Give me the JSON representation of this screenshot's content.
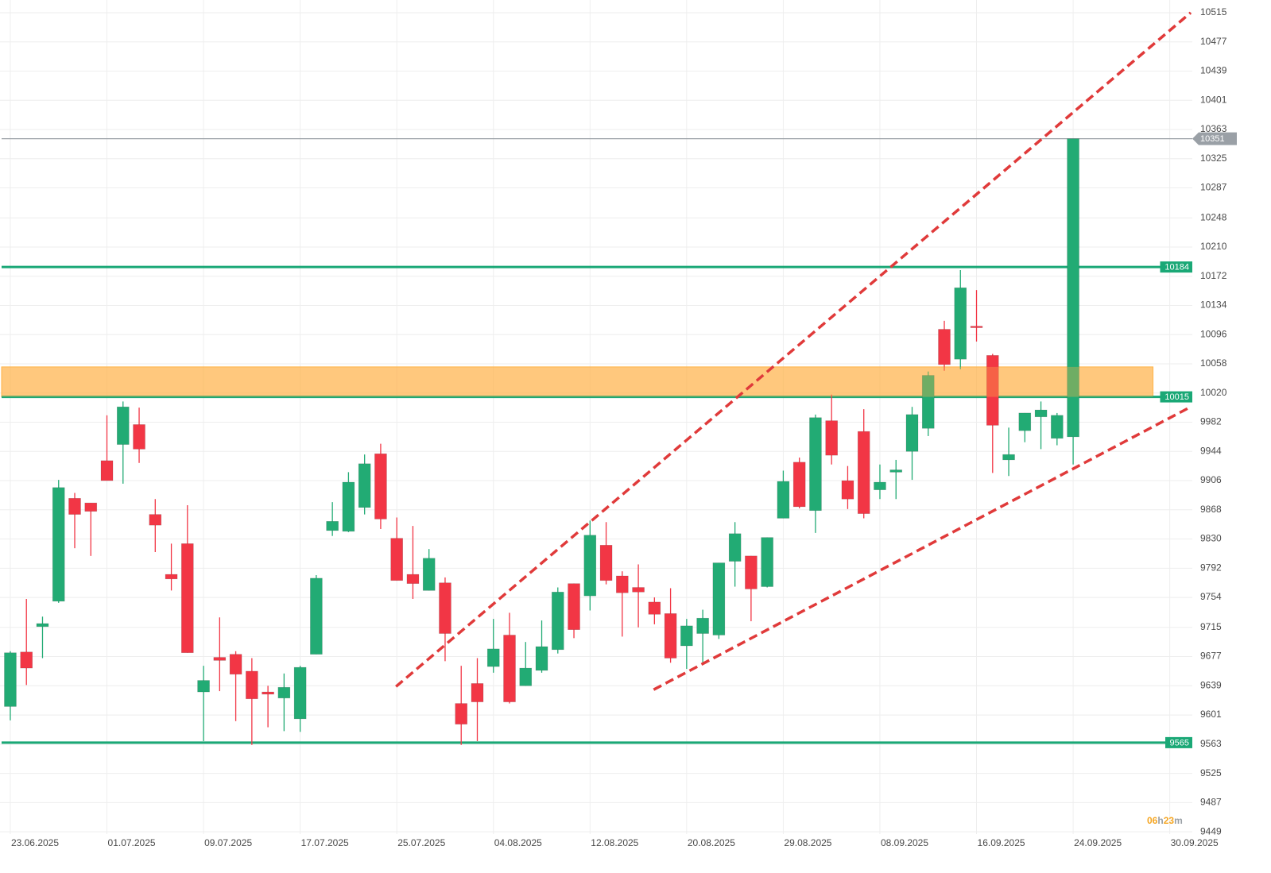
{
  "chart_data": {
    "type": "candlestick",
    "up_color": "#22ab74",
    "down_color": "#f23645",
    "open": [
      9612,
      9683,
      9716,
      9749,
      9883,
      9877,
      9932,
      9953,
      9979,
      9862,
      9784,
      9824,
      9631,
      9676,
      9680,
      9658,
      9631,
      9623,
      9596,
      9680,
      9841,
      9840,
      9871,
      9941,
      9831,
      9784,
      9763,
      9773,
      9616,
      9642,
      9664,
      9705,
      9639,
      9659,
      9686,
      9772,
      9756,
      9822,
      9782,
      9767,
      9748,
      9733,
      9691,
      9707,
      9705,
      9801,
      9808,
      9768,
      9857,
      9930,
      9867,
      9984,
      9906,
      9970,
      9894,
      9917,
      9944,
      9974,
      10103,
      10064,
      10107,
      10069,
      9933,
      9971,
      9989,
      9961,
      9963
    ],
    "high": [
      9684,
      9752,
      9729,
      9907,
      9890,
      9877,
      9991,
      10009,
      10001,
      9882,
      9824,
      9874,
      9665,
      9728,
      9684,
      9675,
      9639,
      9655,
      9665,
      9783,
      9878,
      9917,
      9940,
      9954,
      9858,
      9847,
      9817,
      9780,
      9665,
      9675,
      9726,
      9734,
      9696,
      9724,
      9767,
      9772,
      9854,
      9852,
      9788,
      9797,
      9754,
      9766,
      9726,
      9738,
      9799,
      9852,
      9808,
      9832,
      9919,
      9936,
      9992,
      10018,
      9925,
      9999,
      9927,
      9933,
      10002,
      10048,
      10114,
      10180,
      10154,
      10071,
      9975,
      9994,
      10009,
      9994,
      10351
    ],
    "low": [
      9594,
      9640,
      9675,
      9747,
      9818,
      9808,
      9906,
      9902,
      9929,
      9813,
      9763,
      9682,
      9567,
      9632,
      9593,
      9562,
      9585,
      9580,
      9579,
      9680,
      9834,
      9839,
      9862,
      9843,
      9776,
      9752,
      9763,
      9671,
      9562,
      9567,
      9656,
      9616,
      9639,
      9656,
      9681,
      9701,
      9737,
      9771,
      9703,
      9715,
      9719,
      9669,
      9661,
      9669,
      9700,
      9768,
      9723,
      9767,
      9857,
      9870,
      9838,
      9927,
      9869,
      9857,
      9882,
      9882,
      9907,
      9964,
      10049,
      10051,
      10087,
      9916,
      9912,
      9956,
      9947,
      9952,
      9927
    ],
    "close": [
      9682,
      9662,
      9720,
      9897,
      9862,
      9866,
      9906,
      10002,
      9947,
      9848,
      9778,
      9682,
      9646,
      9672,
      9654,
      9622,
      9628,
      9637,
      9663,
      9779,
      9853,
      9904,
      9928,
      9856,
      9776,
      9772,
      9805,
      9707,
      9589,
      9618,
      9687,
      9618,
      9662,
      9690,
      9761,
      9712,
      9835,
      9776,
      9760,
      9761,
      9732,
      9675,
      9717,
      9727,
      9799,
      9837,
      9765,
      9832,
      9905,
      9872,
      9988,
      9939,
      9882,
      9863,
      9904,
      9920,
      9992,
      10043,
      10057,
      10157,
      10105,
      9978,
      9940,
      9994,
      9998,
      9991,
      10351
    ],
    "xlim": [
      -0.64,
      73.4
    ],
    "xticks": [
      {
        "value": 0,
        "label": "23.06.2025"
      },
      {
        "value": 6,
        "label": "01.07.2025"
      },
      {
        "value": 12,
        "label": "09.07.2025"
      },
      {
        "value": 18,
        "label": "17.07.2025"
      },
      {
        "value": 24,
        "label": "25.07.2025"
      },
      {
        "value": 30,
        "label": "04.08.2025"
      },
      {
        "value": 36,
        "label": "12.08.2025"
      },
      {
        "value": 42,
        "label": "20.08.2025"
      },
      {
        "value": 48,
        "label": "29.08.2025"
      },
      {
        "value": 54,
        "label": "08.09.2025"
      },
      {
        "value": 60,
        "label": "16.09.2025"
      },
      {
        "value": 66,
        "label": "24.09.2025"
      },
      {
        "value": 72,
        "label": "30.09.2025"
      }
    ],
    "ylim": [
      9446,
      10531.5
    ],
    "yticks": [
      10515,
      10477,
      10439,
      10401,
      10363,
      10325,
      10287,
      10248,
      10210,
      10172,
      10134,
      10096,
      10058,
      10020,
      9982,
      9944,
      9906,
      9868,
      9830,
      9792,
      9754,
      9715,
      9677,
      9639,
      9601,
      9563,
      9525,
      9487,
      9449
    ],
    "grid": true,
    "levels": [
      {
        "value": 10184,
        "color": "#1aa876"
      },
      {
        "value": 10015,
        "color": "#1aa876"
      },
      {
        "value": 9565,
        "color": "#1aa876"
      }
    ],
    "current_price": {
      "value": 10351,
      "color": "#9aa0a6"
    },
    "zone": {
      "from": 10015,
      "to": 10054,
      "x_end": 70.96,
      "color": "#ffb347"
    },
    "trendlines": [
      {
        "x": [
          23.95,
          73.3
        ],
        "y": [
          9638,
          10515
        ],
        "color": "#e03a3a"
      },
      {
        "x": [
          39.95,
          73.3
        ],
        "y": [
          9634,
          10002
        ],
        "color": "#e03a3a"
      }
    ],
    "countdown": [
      "06",
      "h",
      "23",
      "m"
    ]
  }
}
